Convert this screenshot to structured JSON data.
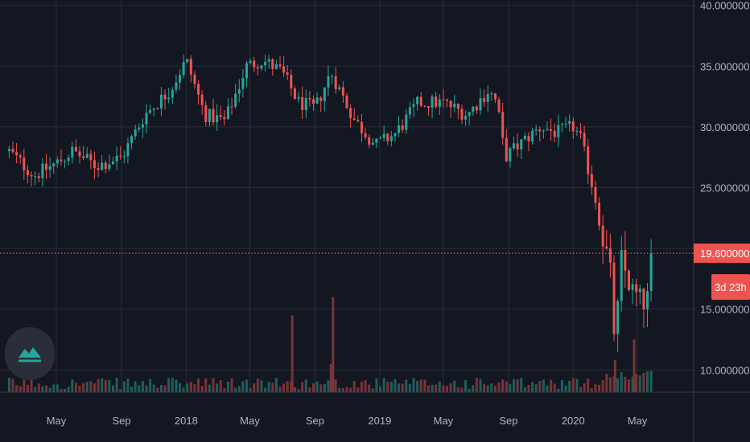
{
  "colors": {
    "background": "#131722",
    "grid": "#2a2e39",
    "up": "#26a69a",
    "down": "#ef5350",
    "up_volume": "#1f5f5a",
    "down_volume": "#7a3336",
    "axis_text": "#b2b5be",
    "current_price": "#ef5350"
  },
  "logo": {
    "icon": "tradingview-chart-logo-icon"
  },
  "chart_data": {
    "type": "candlestick",
    "title": "",
    "xlabel": "",
    "ylabel": "",
    "grid": true,
    "x_ticks": [
      "May",
      "Sep",
      "2018",
      "May",
      "Sep",
      "2019",
      "May",
      "Sep",
      "2020",
      "May"
    ],
    "y_ticks": [
      "10.000000",
      "15.000000",
      "25.000000",
      "30.000000",
      "35.000000",
      "40.000000"
    ],
    "ylim": [
      8.0,
      40.5
    ],
    "current_price": {
      "value": 19.6,
      "label": "19.600000"
    },
    "countdown": {
      "label": "3d 23h"
    },
    "anchors": [
      [
        "2017-02-01",
        28.0
      ],
      [
        "2017-03-20",
        26.0
      ],
      [
        "2017-05-01",
        27.0
      ],
      [
        "2017-06-01",
        28.0
      ],
      [
        "2017-07-15",
        26.8
      ],
      [
        "2017-09-01",
        27.5
      ],
      [
        "2017-10-15",
        31.0
      ],
      [
        "2017-12-01",
        33.0
      ],
      [
        "2018-01-01",
        35.5
      ],
      [
        "2018-02-05",
        31.0
      ],
      [
        "2018-03-15",
        30.5
      ],
      [
        "2018-04-25",
        35.0
      ],
      [
        "2018-05-25",
        35.5
      ],
      [
        "2018-07-01",
        34.5
      ],
      [
        "2018-08-01",
        32.0
      ],
      [
        "2018-09-01",
        31.5
      ],
      [
        "2018-10-01",
        34.5
      ],
      [
        "2018-11-15",
        30.5
      ],
      [
        "2018-12-25",
        28.5
      ],
      [
        "2019-02-01",
        29.5
      ],
      [
        "2019-03-15",
        32.0
      ],
      [
        "2019-05-01",
        32.0
      ],
      [
        "2019-06-15",
        31.0
      ],
      [
        "2019-07-25",
        33.0
      ],
      [
        "2019-08-10",
        32.0
      ],
      [
        "2019-08-25",
        27.5
      ],
      [
        "2019-09-20",
        28.5
      ],
      [
        "2019-11-01",
        30.0
      ],
      [
        "2019-12-01",
        29.5
      ],
      [
        "2020-01-01",
        30.0
      ],
      [
        "2020-01-15",
        29.0
      ],
      [
        "2020-02-10",
        24.5
      ],
      [
        "2020-02-25",
        21.0
      ],
      [
        "2020-03-10",
        18.5
      ],
      [
        "2020-03-20",
        12.0
      ],
      [
        "2020-04-01",
        19.0
      ],
      [
        "2020-04-20",
        16.5
      ],
      [
        "2020-05-10",
        15.5
      ],
      [
        "2020-05-25",
        16.0
      ],
      [
        "2020-06-01",
        19.6
      ]
    ],
    "volume_spikes": [
      [
        "2018-07-20",
        14.5
      ],
      [
        "2018-10-05",
        16.0
      ],
      [
        "2018-10-01",
        10.5
      ],
      [
        "2020-04-25",
        12.5
      ],
      [
        "2020-03-20",
        10.8
      ]
    ]
  }
}
